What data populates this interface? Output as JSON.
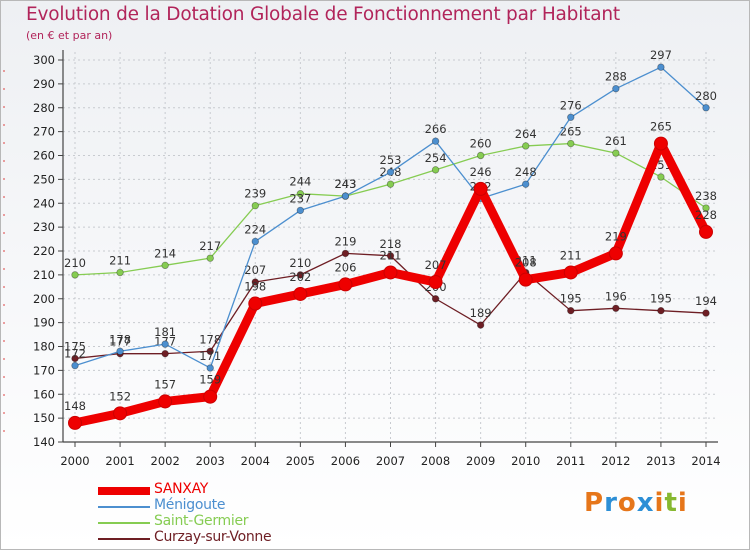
{
  "header": {
    "title": "Evolution de la Dotation Globale de Fonctionnement par Habitant",
    "subtitle": "(en € et par an)"
  },
  "logo": {
    "letters": [
      "P",
      "r",
      "o",
      "x",
      "i",
      "t",
      "i"
    ]
  },
  "colors": {
    "title": "#b1245a",
    "axis": "#444444",
    "grid": "#c8cbd0",
    "logo": [
      "#e6761a",
      "#2c8fd6",
      "#e6761a",
      "#2c8fd6",
      "#e6761a",
      "#86b830",
      "#e6761a"
    ]
  },
  "chart_data": {
    "type": "line",
    "title": "Evolution de la Dotation Globale de Fonctionnement par Habitant",
    "subtitle": "(en € et par an)",
    "xlabel": "",
    "ylabel": "",
    "x": [
      2000,
      2001,
      2002,
      2003,
      2004,
      2005,
      2006,
      2007,
      2008,
      2009,
      2010,
      2011,
      2012,
      2013,
      2014
    ],
    "ylim": [
      140,
      300
    ],
    "yticks": [
      140,
      150,
      160,
      170,
      180,
      190,
      200,
      210,
      220,
      230,
      240,
      250,
      260,
      270,
      280,
      290,
      300
    ],
    "grid": true,
    "legend": "bottom-left",
    "series": [
      {
        "name": "Curzay-sur-Vonne",
        "color": "#6e1e24",
        "values": [
          175,
          177,
          177,
          178,
          207,
          210,
          219,
          218,
          200,
          189,
          211,
          195,
          196,
          195,
          194
        ],
        "labels": [
          "175",
          "177",
          "177",
          "178",
          "207",
          "210",
          "219",
          "218",
          "200",
          "189",
          "211",
          "195",
          "196",
          "195",
          "194"
        ]
      },
      {
        "name": "Saint-Germier",
        "color": "#86cc52",
        "values": [
          210,
          211,
          214,
          217,
          239,
          244,
          243,
          248,
          254,
          260,
          264,
          265,
          261,
          251,
          238
        ],
        "labels": [
          "210",
          "211",
          "214",
          "217",
          "239",
          "244",
          "243",
          "248",
          "254",
          "260",
          "264",
          "265",
          "261",
          "251",
          "238"
        ]
      },
      {
        "name": "Ménigoute",
        "color": "#4c8fcf",
        "values": [
          172,
          178,
          181,
          171,
          224,
          237,
          243,
          253,
          266,
          242,
          248,
          276,
          288,
          297,
          280
        ],
        "labels": [
          "172",
          "178",
          "181",
          "171",
          "224",
          "237",
          "243",
          "253",
          "266",
          "242",
          "248",
          "276",
          "288",
          "297",
          "280"
        ]
      },
      {
        "name": "SANXAY",
        "color": "#ee0000",
        "values": [
          148,
          152,
          157,
          159,
          198,
          202,
          206,
          211,
          207,
          246,
          208,
          211,
          219,
          265,
          228
        ],
        "labels": [
          "148",
          "152",
          "157",
          "159",
          "198",
          "202",
          "206",
          "211",
          "207",
          "246",
          "208",
          "211",
          "219",
          "265",
          "228"
        ]
      }
    ],
    "legend_order": [
      "SANXAY",
      "Ménigoute",
      "Saint-Germier",
      "Curzay-sur-Vonne"
    ]
  }
}
